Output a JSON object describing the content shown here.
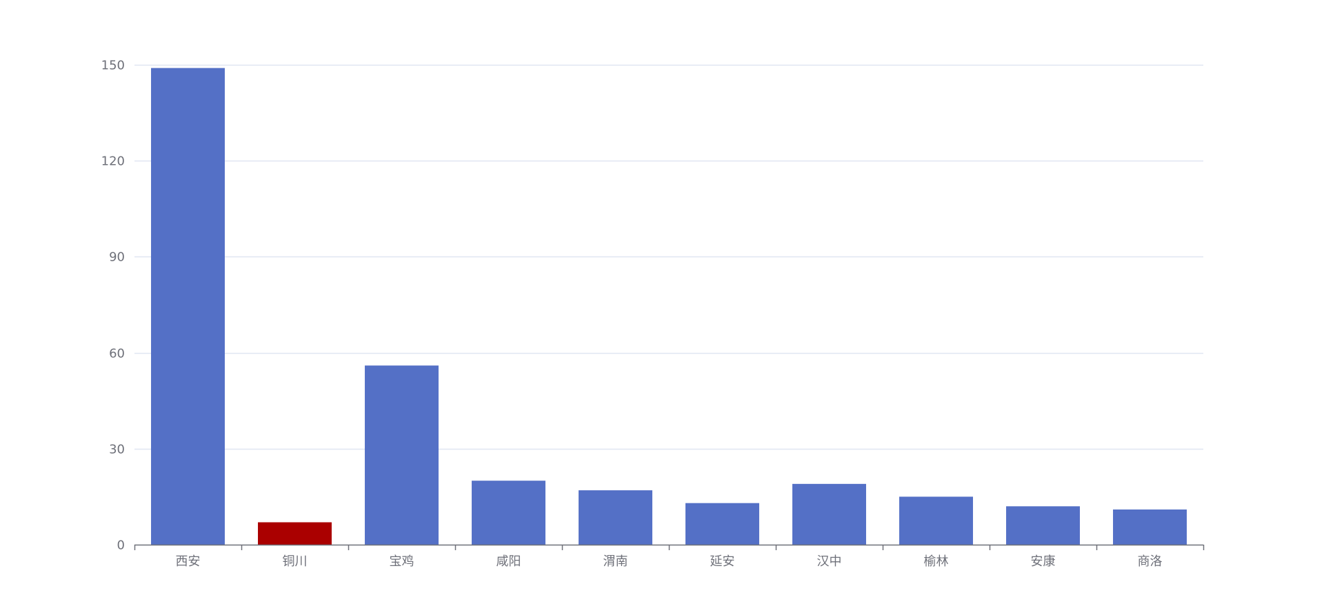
{
  "chart_data": {
    "type": "bar",
    "title": "",
    "xlabel": "",
    "ylabel": "",
    "categories": [
      "西安",
      "铜川",
      "宝鸡",
      "咸阳",
      "渭南",
      "延安",
      "汉中",
      "榆林",
      "安康",
      "商洛"
    ],
    "values": [
      149,
      7,
      56,
      20,
      17,
      13,
      19,
      15,
      12,
      11
    ],
    "highlight_category": "铜川",
    "ylim": [
      0,
      150
    ],
    "yticks": [
      0,
      30,
      60,
      90,
      120,
      150
    ],
    "grid": true,
    "legend": "none",
    "colors": {
      "bar": "#5470c6",
      "highlight": "#aa0000",
      "grid": "#e0e6f1",
      "axis": "#6e7079",
      "text": "#6e7079"
    }
  }
}
